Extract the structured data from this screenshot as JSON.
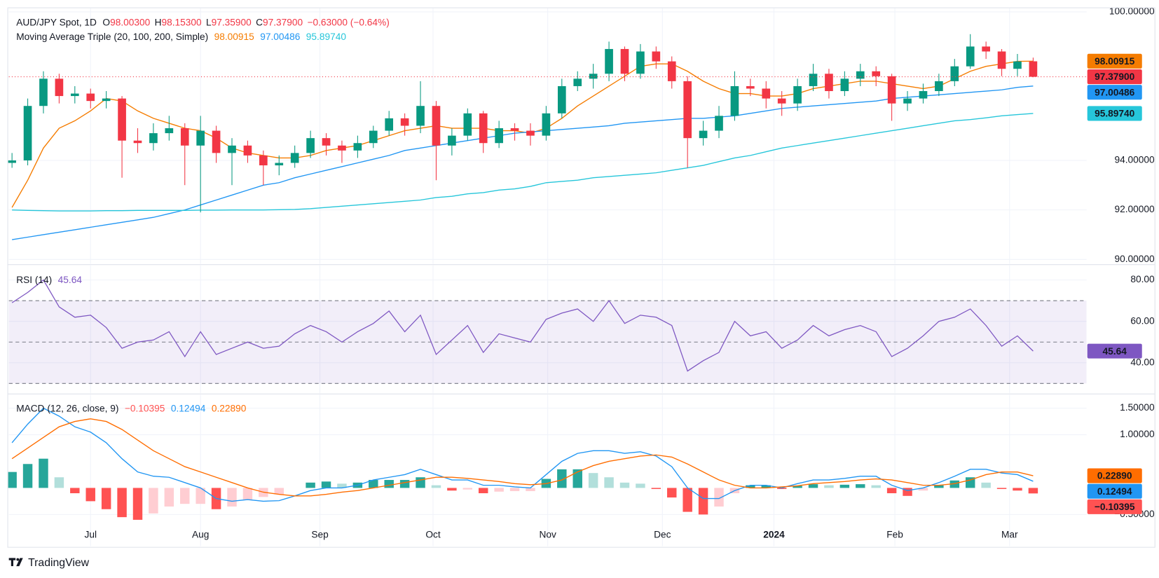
{
  "chart_data": [
    {
      "type": "candlestick",
      "title": "AUD/JPY Spot, 1D",
      "ohlc_legend": [
        {
          "key": "O",
          "value": "98.00300"
        },
        {
          "key": "H",
          "value": "98.15300"
        },
        {
          "key": "L",
          "value": "97.35900"
        },
        {
          "key": "C",
          "value": "97.37900"
        }
      ],
      "change": "−0.63000 (−0.64%)",
      "open": [
        93.9,
        94.0,
        96.2,
        97.3,
        96.6,
        96.7,
        96.4,
        96.5,
        94.8,
        94.7,
        95.1,
        95.3,
        94.6,
        95.2,
        94.3,
        94.6,
        94.2,
        93.8,
        93.9,
        94.3,
        94.9,
        94.6,
        94.4,
        94.7,
        95.2,
        95.7,
        95.4,
        96.2,
        94.6,
        95.0,
        95.9,
        94.7,
        95.3,
        95.2,
        95.0,
        95.9,
        97.0,
        97.3,
        97.5,
        98.5,
        97.5,
        98.4,
        98.0,
        97.2,
        94.9,
        95.2,
        95.8,
        97.0,
        96.9,
        96.5,
        96.3,
        97.0,
        97.5,
        96.8,
        97.3,
        97.6,
        97.4,
        96.3,
        96.5,
        96.8,
        97.2,
        97.8,
        98.6,
        98.4,
        97.7,
        98.003
      ],
      "high": [
        94.3,
        96.5,
        97.6,
        97.5,
        97.0,
        96.9,
        96.8,
        96.6,
        95.3,
        95.5,
        95.8,
        95.5,
        95.8,
        95.4,
        94.9,
        94.8,
        94.4,
        94.2,
        94.6,
        95.2,
        95.1,
        94.8,
        95.0,
        95.4,
        96.0,
        95.9,
        97.2,
        96.4,
        95.3,
        96.1,
        96.0,
        95.6,
        95.5,
        95.5,
        96.2,
        97.3,
        97.6,
        97.9,
        98.8,
        98.6,
        98.7,
        98.6,
        98.2,
        97.4,
        95.6,
        96.2,
        97.6,
        97.3,
        97.2,
        96.8,
        97.3,
        97.9,
        97.7,
        97.6,
        97.9,
        97.8,
        97.5,
        96.8,
        97.1,
        97.5,
        98.1,
        99.1,
        98.8,
        98.5,
        98.3,
        98.153
      ],
      "low": [
        93.7,
        93.8,
        95.9,
        96.3,
        96.3,
        96.1,
        96.1,
        93.3,
        94.3,
        94.4,
        94.8,
        93.0,
        91.9,
        93.9,
        93.0,
        93.9,
        93.0,
        93.4,
        93.7,
        94.1,
        94.2,
        93.9,
        94.1,
        94.5,
        95.0,
        95.0,
        95.1,
        93.2,
        94.2,
        94.8,
        94.3,
        94.5,
        94.8,
        94.6,
        94.8,
        95.7,
        96.8,
        96.9,
        97.2,
        97.2,
        97.3,
        97.7,
        96.9,
        93.7,
        94.6,
        94.9,
        95.6,
        96.6,
        96.1,
        95.8,
        96.0,
        96.8,
        96.5,
        96.6,
        97.0,
        97.0,
        95.6,
        96.0,
        96.3,
        96.6,
        97.0,
        97.7,
        98.1,
        97.4,
        97.4,
        97.359
      ],
      "close": [
        94.0,
        96.2,
        97.3,
        96.6,
        96.7,
        96.4,
        96.5,
        94.8,
        94.7,
        95.1,
        95.3,
        94.6,
        95.2,
        94.3,
        94.6,
        94.2,
        93.8,
        93.9,
        94.3,
        94.9,
        94.6,
        94.4,
        94.7,
        95.2,
        95.7,
        95.4,
        96.2,
        94.6,
        95.0,
        95.9,
        94.7,
        95.3,
        95.2,
        95.0,
        95.9,
        97.0,
        97.3,
        97.5,
        98.5,
        97.5,
        98.4,
        98.0,
        97.2,
        94.9,
        95.2,
        95.8,
        97.0,
        96.9,
        96.5,
        96.3,
        97.0,
        97.5,
        96.8,
        97.3,
        97.6,
        97.4,
        96.3,
        96.5,
        96.8,
        97.2,
        97.8,
        98.6,
        98.4,
        97.7,
        98.0,
        97.379
      ],
      "close_label": "97.37900",
      "up_color": "#089981",
      "down_color": "#f23645",
      "overlay_title": "Moving Average Triple (20, 100, 200, Simple)",
      "series": [
        {
          "color": "#f57c00",
          "last_label": "98.00915",
          "values": [
            92.1,
            93.2,
            94.5,
            95.3,
            95.6,
            96.0,
            96.5,
            96.4,
            96.0,
            95.7,
            95.5,
            95.3,
            95.2,
            94.9,
            94.5,
            94.3,
            94.2,
            94.1,
            94.1,
            94.2,
            94.4,
            94.5,
            94.6,
            94.8,
            95.0,
            95.2,
            95.3,
            95.4,
            95.3,
            95.3,
            95.3,
            95.2,
            95.2,
            95.1,
            95.3,
            95.7,
            96.2,
            96.6,
            97.0,
            97.4,
            97.8,
            97.9,
            97.9,
            97.6,
            97.2,
            96.9,
            96.7,
            96.7,
            96.6,
            96.6,
            96.7,
            96.9,
            97.0,
            97.1,
            97.2,
            97.2,
            97.1,
            97.0,
            96.9,
            97.0,
            97.3,
            97.6,
            97.8,
            97.9,
            98.0,
            98.00915
          ]
        },
        {
          "color": "#2196f3",
          "last_label": "97.00486",
          "values": [
            90.8,
            90.9,
            91.0,
            91.1,
            91.2,
            91.3,
            91.4,
            91.5,
            91.6,
            91.7,
            91.85,
            92.0,
            92.2,
            92.4,
            92.6,
            92.8,
            93.0,
            93.1,
            93.3,
            93.45,
            93.6,
            93.75,
            93.9,
            94.05,
            94.2,
            94.4,
            94.5,
            94.6,
            94.7,
            94.8,
            94.9,
            95.0,
            95.1,
            95.15,
            95.2,
            95.25,
            95.3,
            95.35,
            95.4,
            95.5,
            95.55,
            95.6,
            95.65,
            95.7,
            95.7,
            95.75,
            95.8,
            95.9,
            96.0,
            96.1,
            96.15,
            96.2,
            96.25,
            96.3,
            96.35,
            96.4,
            96.5,
            96.55,
            96.6,
            96.65,
            96.7,
            96.75,
            96.8,
            96.85,
            96.95,
            97.00486
          ]
        },
        {
          "color": "#26c6da",
          "last_label": "95.89740",
          "values": [
            92.0,
            91.98,
            91.97,
            91.96,
            91.96,
            91.96,
            91.97,
            91.97,
            91.98,
            91.98,
            91.98,
            91.98,
            91.99,
            91.99,
            92.0,
            92.0,
            92.0,
            92.01,
            92.02,
            92.05,
            92.1,
            92.15,
            92.2,
            92.25,
            92.3,
            92.35,
            92.4,
            92.5,
            92.55,
            92.65,
            92.7,
            92.8,
            92.85,
            92.95,
            93.1,
            93.15,
            93.2,
            93.3,
            93.35,
            93.4,
            93.45,
            93.5,
            93.6,
            93.7,
            93.8,
            93.95,
            94.1,
            94.2,
            94.35,
            94.5,
            94.6,
            94.7,
            94.8,
            94.9,
            95.0,
            95.1,
            95.2,
            95.3,
            95.4,
            95.5,
            95.6,
            95.65,
            95.72,
            95.8,
            95.85,
            95.8974
          ]
        }
      ],
      "ylim": [
        90,
        100
      ],
      "yticks": [
        {
          "value": 100,
          "label": "100.00000"
        },
        {
          "value": 94,
          "label": "94.00000"
        },
        {
          "value": 92,
          "label": "92.00000"
        },
        {
          "value": 90,
          "label": "90.00000"
        }
      ],
      "xlim": [
        -0.2,
        68.4
      ],
      "xticks": [
        {
          "value": 5.0,
          "label": "Jul"
        },
        {
          "value": 12.0,
          "label": "Aug"
        },
        {
          "value": 19.6,
          "label": "Sep"
        },
        {
          "value": 26.8,
          "label": "Oct"
        },
        {
          "value": 34.1,
          "label": "Nov"
        },
        {
          "value": 41.4,
          "label": "Dec"
        },
        {
          "value": 48.5,
          "label": "2024"
        },
        {
          "value": 56.2,
          "label": "Feb"
        },
        {
          "value": 63.5,
          "label": "Mar"
        }
      ],
      "grid": true
    },
    {
      "type": "line",
      "title": "RSI (14)",
      "series": [
        {
          "color": "#7e57c2",
          "values": [
            69,
            74,
            80,
            67,
            62,
            63,
            57,
            47,
            50,
            51,
            55,
            43,
            55,
            44,
            47,
            50,
            47,
            48,
            54,
            58,
            55,
            50,
            55,
            59,
            65,
            55,
            63,
            44,
            51,
            58,
            45,
            54,
            52,
            50,
            61,
            64,
            66,
            60,
            70,
            59,
            63,
            62,
            58,
            36,
            41,
            45,
            60,
            53,
            55,
            47,
            51,
            58,
            53,
            56,
            58,
            55,
            43,
            47,
            53,
            60,
            62,
            66,
            58,
            48,
            53,
            45.64
          ]
        }
      ],
      "levels": [
        70,
        50,
        30
      ],
      "band_color": "#7e57c2",
      "ylim": [
        26,
        86
      ],
      "yticks": [
        {
          "value": 80,
          "label": "80.00"
        },
        {
          "value": 60,
          "label": "60.00"
        },
        {
          "value": 40,
          "label": "40.00"
        }
      ],
      "grid": true
    },
    {
      "type": "macd",
      "title": "MACD (12, 26, close, 9)",
      "histogram": {
        "last_label": "−0.10395",
        "colors": [
          "#26a69a",
          "#b2dfdb",
          "#ffcdd2",
          "#ff5252"
        ],
        "values": [
          0.3,
          0.45,
          0.55,
          0.2,
          -0.1,
          -0.25,
          -0.4,
          -0.55,
          -0.6,
          -0.48,
          -0.35,
          -0.3,
          -0.3,
          -0.4,
          -0.35,
          -0.22,
          -0.17,
          -0.12,
          0.0,
          0.1,
          0.12,
          0.08,
          0.1,
          0.15,
          0.15,
          0.15,
          0.2,
          0.05,
          -0.05,
          -0.03,
          -0.1,
          -0.07,
          -0.06,
          -0.06,
          0.17,
          0.35,
          0.35,
          0.28,
          0.2,
          0.1,
          0.08,
          -0.02,
          -0.18,
          -0.45,
          -0.5,
          -0.35,
          -0.1,
          0.05,
          0.05,
          -0.02,
          0.04,
          0.07,
          0.05,
          0.06,
          0.07,
          0.05,
          -0.1,
          -0.15,
          -0.05,
          0.05,
          0.14,
          0.2,
          0.1,
          -0.02,
          -0.05,
          -0.10395
        ]
      },
      "series": [
        {
          "color": "#2196f3",
          "last_label": "0.12494",
          "values": [
            0.85,
            1.2,
            1.5,
            1.35,
            1.15,
            1.05,
            0.85,
            0.55,
            0.3,
            0.22,
            0.2,
            0.1,
            0.0,
            -0.2,
            -0.25,
            -0.22,
            -0.25,
            -0.24,
            -0.15,
            -0.05,
            0.0,
            0.0,
            0.05,
            0.15,
            0.2,
            0.25,
            0.35,
            0.25,
            0.15,
            0.15,
            0.05,
            0.05,
            0.02,
            0.0,
            0.25,
            0.5,
            0.65,
            0.7,
            0.7,
            0.65,
            0.68,
            0.6,
            0.4,
            0.0,
            -0.2,
            -0.2,
            -0.05,
            0.05,
            0.05,
            0.0,
            0.08,
            0.15,
            0.15,
            0.18,
            0.22,
            0.22,
            0.05,
            -0.05,
            0.0,
            0.1,
            0.22,
            0.35,
            0.35,
            0.28,
            0.25,
            0.12494
          ]
        },
        {
          "color": "#ff6d00",
          "last_label": "0.22890",
          "values": [
            0.55,
            0.75,
            0.95,
            1.15,
            1.25,
            1.3,
            1.25,
            1.1,
            0.9,
            0.7,
            0.55,
            0.4,
            0.3,
            0.2,
            0.1,
            0.0,
            -0.08,
            -0.12,
            -0.15,
            -0.15,
            -0.12,
            -0.08,
            -0.05,
            0.0,
            0.05,
            0.1,
            0.15,
            0.2,
            0.2,
            0.18,
            0.15,
            0.12,
            0.08,
            0.06,
            0.08,
            0.15,
            0.3,
            0.42,
            0.5,
            0.55,
            0.6,
            0.62,
            0.58,
            0.45,
            0.3,
            0.15,
            0.05,
            0.0,
            0.0,
            0.02,
            0.04,
            0.08,
            0.1,
            0.12,
            0.15,
            0.17,
            0.15,
            0.1,
            0.05,
            0.05,
            0.08,
            0.15,
            0.25,
            0.3,
            0.3,
            0.2289
          ]
        }
      ],
      "ylim": [
        -1.11,
        1.74
      ],
      "yticks": [
        {
          "value": 1.5,
          "label": "1.50000"
        },
        {
          "value": 1,
          "label": "1.00000"
        },
        {
          "value": -0.5,
          "label": "−0.50000"
        }
      ],
      "grid": true
    }
  ],
  "footer": {
    "brand": "TradingView"
  }
}
